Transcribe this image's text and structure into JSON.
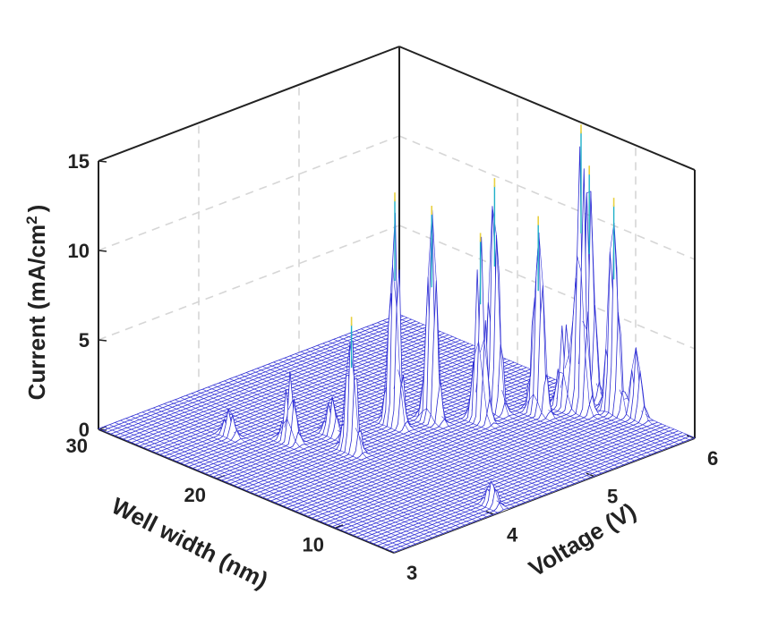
{
  "chart_data": {
    "type": "surface",
    "title": "",
    "zlabel_main": "Current (mA/cm",
    "zlabel_sup": "2",
    "zlabel_close": ")",
    "xlabel": "Voltage (V)",
    "ylabel": "Well width (nm)",
    "xlim": [
      3,
      6
    ],
    "ylim": [
      5,
      30
    ],
    "zlim": [
      0,
      15
    ],
    "x_ticks": [
      3,
      4,
      5,
      6
    ],
    "y_ticks": [
      10,
      20,
      30
    ],
    "z_ticks": [
      0,
      5,
      10,
      15
    ],
    "grid": true,
    "colormap": "parula-like (blue low, cyan mid, yellow high)",
    "surface_color": "#2b2bd6",
    "peaks": [
      {
        "well_width_nm": 24,
        "voltage_V": 3.6,
        "current": 1.5
      },
      {
        "well_width_nm": 21,
        "voltage_V": 3.85,
        "current": 4.0
      },
      {
        "well_width_nm": 20,
        "voltage_V": 4.15,
        "current": 2.2
      },
      {
        "well_width_nm": 18.5,
        "voltage_V": 4.6,
        "current": 13.0
      },
      {
        "well_width_nm": 17.5,
        "voltage_V": 4.85,
        "current": 12.0
      },
      {
        "well_width_nm": 17.5,
        "voltage_V": 4.05,
        "current": 7.5
      },
      {
        "well_width_nm": 16,
        "voltage_V": 5.3,
        "current": 13.0
      },
      {
        "well_width_nm": 15.5,
        "voltage_V": 5.1,
        "current": 10.5
      },
      {
        "well_width_nm": 13.5,
        "voltage_V": 5.7,
        "current": 5.0
      },
      {
        "well_width_nm": 14,
        "voltage_V": 5.5,
        "current": 11.0
      },
      {
        "well_width_nm": 13.5,
        "voltage_V": 5.95,
        "current": 13.0
      },
      {
        "well_width_nm": 12.5,
        "voltage_V": 5.75,
        "current": 16.0
      },
      {
        "well_width_nm": 11,
        "voltage_V": 5.9,
        "current": 12.0
      },
      {
        "well_width_nm": 9.5,
        "voltage_V": 5.95,
        "current": 4.0
      },
      {
        "well_width_nm": 6,
        "voltage_V": 4.1,
        "current": 1.5
      }
    ],
    "peak_width": {
      "well_width_nm": 0.55,
      "voltage_V": 0.03
    }
  }
}
